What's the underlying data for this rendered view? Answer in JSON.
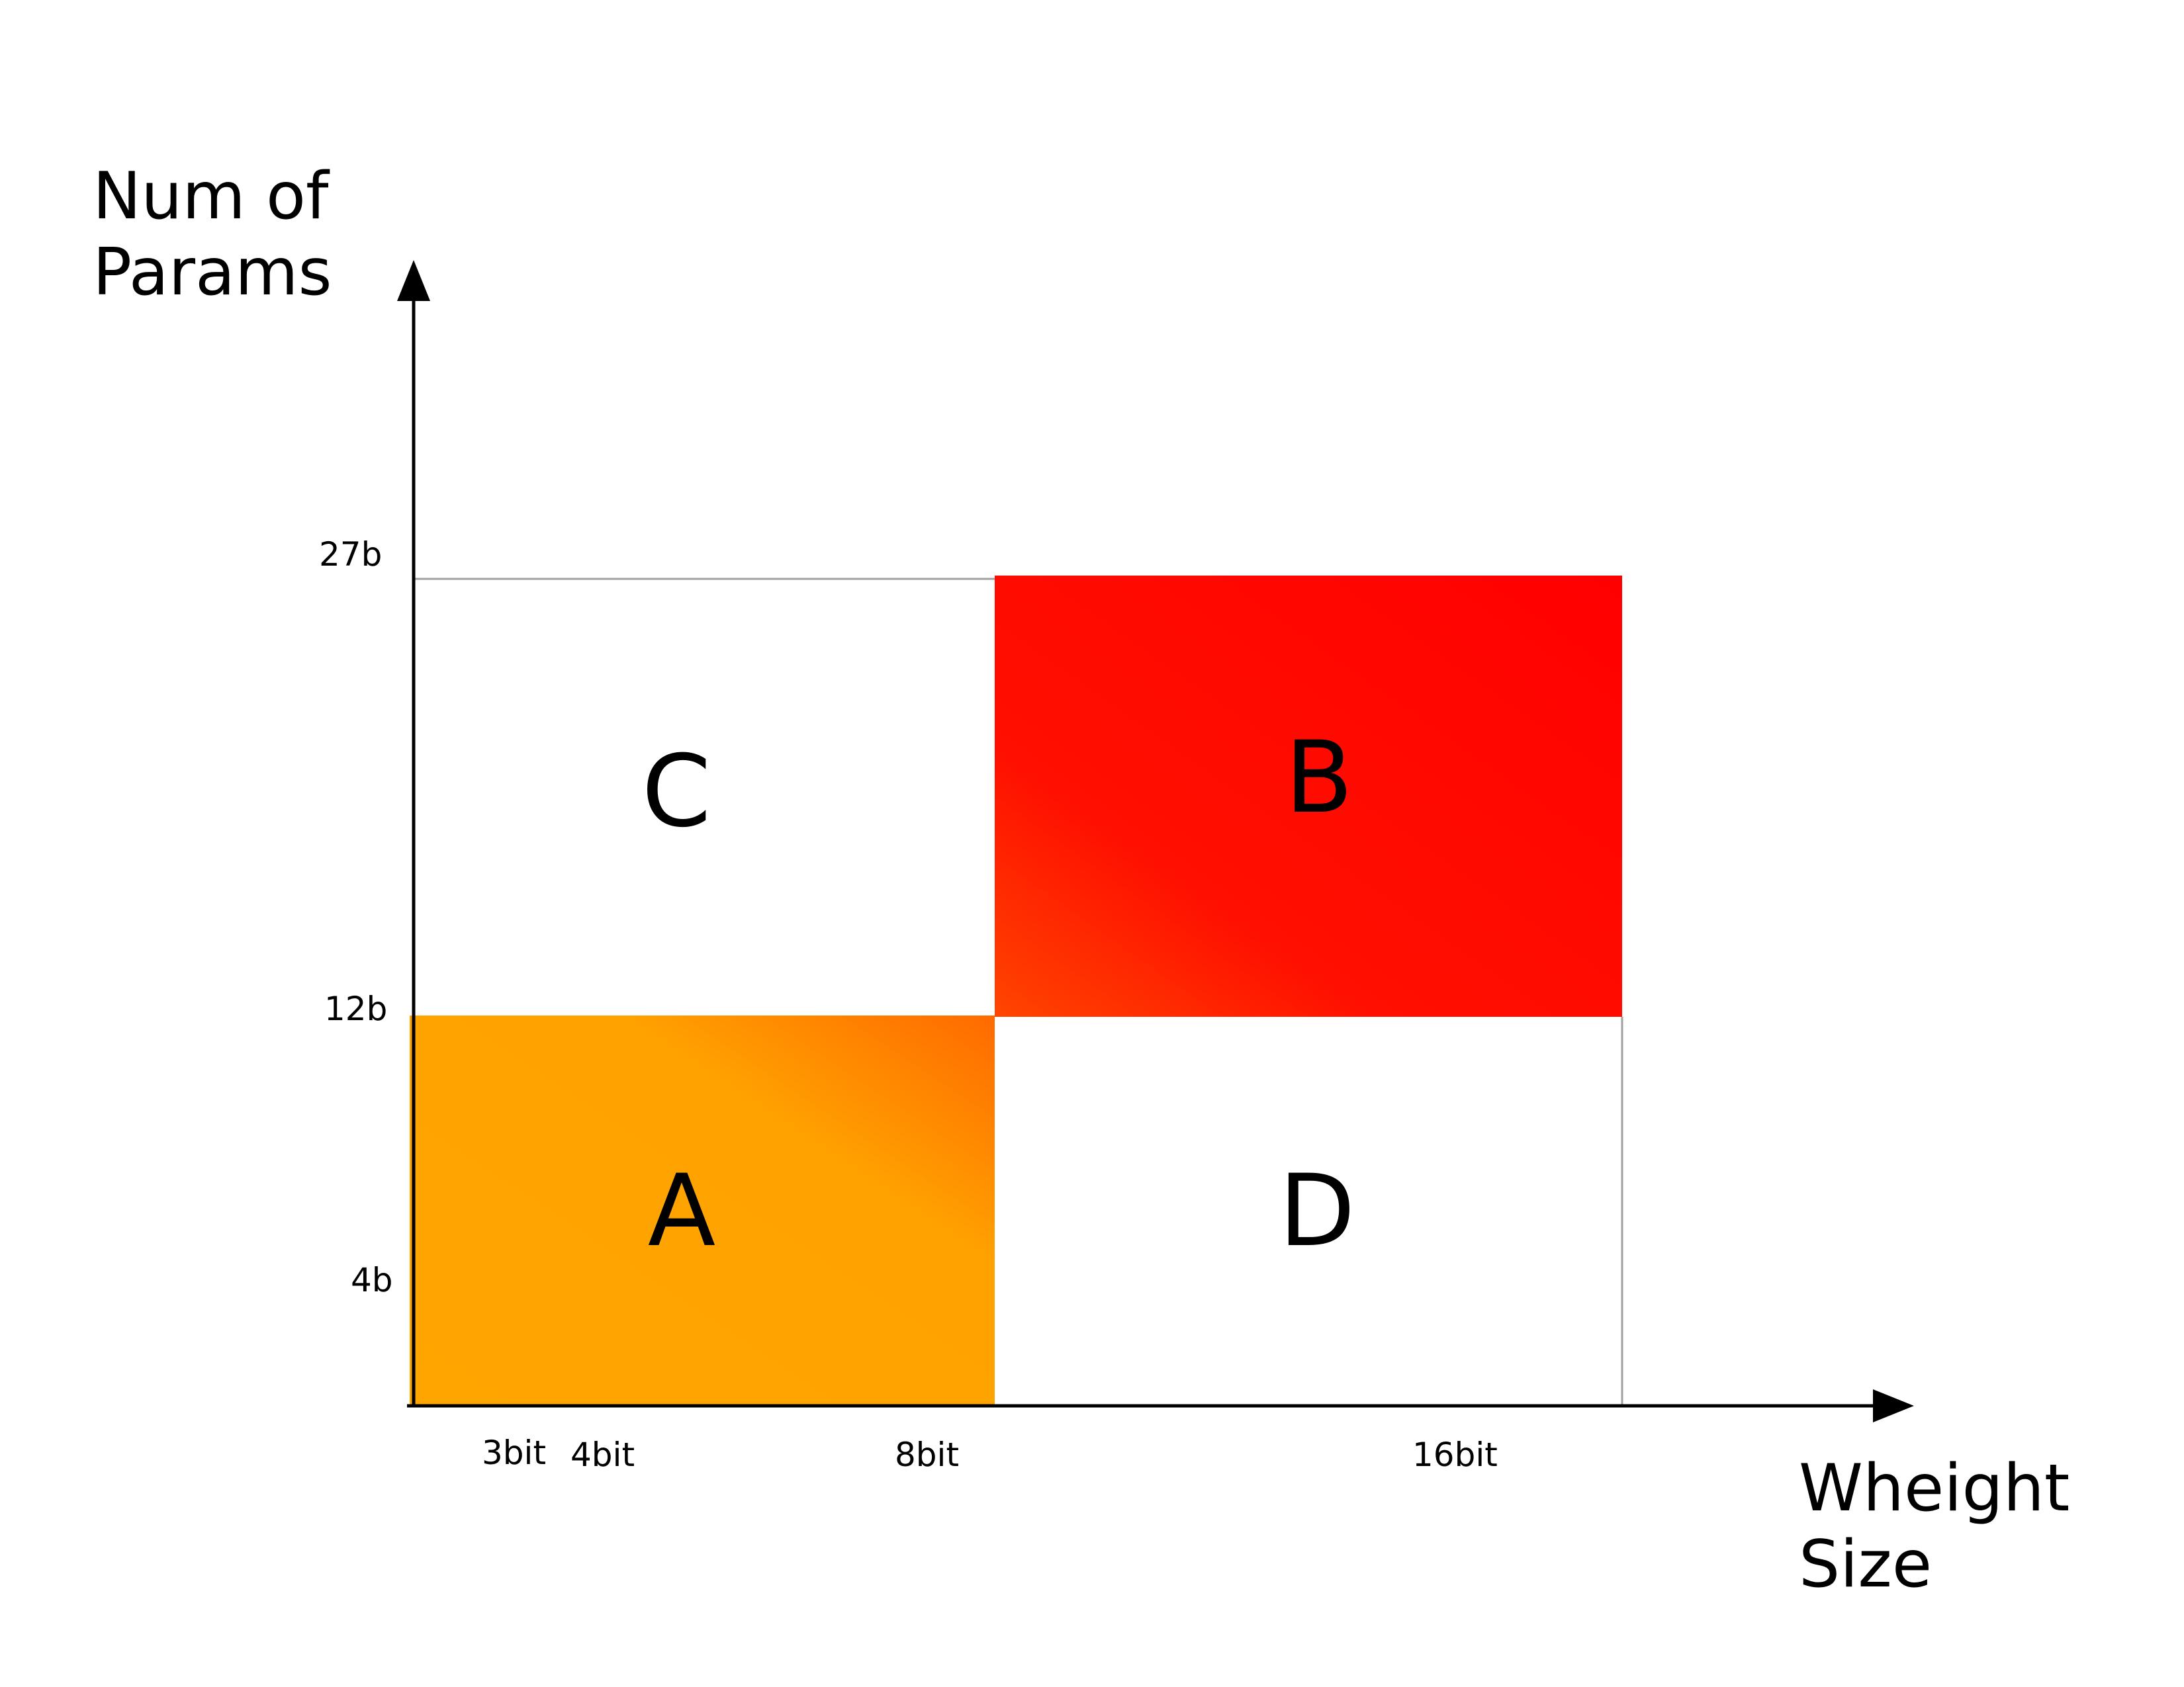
{
  "axes": {
    "y_title_lines": [
      "Num of",
      "Params"
    ],
    "x_title_lines": [
      "Wheight",
      "Size"
    ],
    "y_ticks": [
      "27b",
      "12b",
      "4b"
    ],
    "x_ticks": [
      "3bit",
      "4bit",
      "8bit",
      "16bit"
    ]
  },
  "quadrants": [
    {
      "label": "A",
      "fill": "orange-gradient",
      "colors": [
        "#FFA500",
        "#FF6A00"
      ]
    },
    {
      "label": "B",
      "fill": "red-gradient",
      "colors": [
        "#FF0000",
        "#FF4500"
      ]
    },
    {
      "label": "C",
      "fill": "white",
      "colors": [
        "#FFFFFF"
      ]
    },
    {
      "label": "D",
      "fill": "white",
      "colors": [
        "#FFFFFF"
      ]
    }
  ],
  "colors": {
    "axis": "#000000",
    "grid": "#A0A0A0"
  }
}
